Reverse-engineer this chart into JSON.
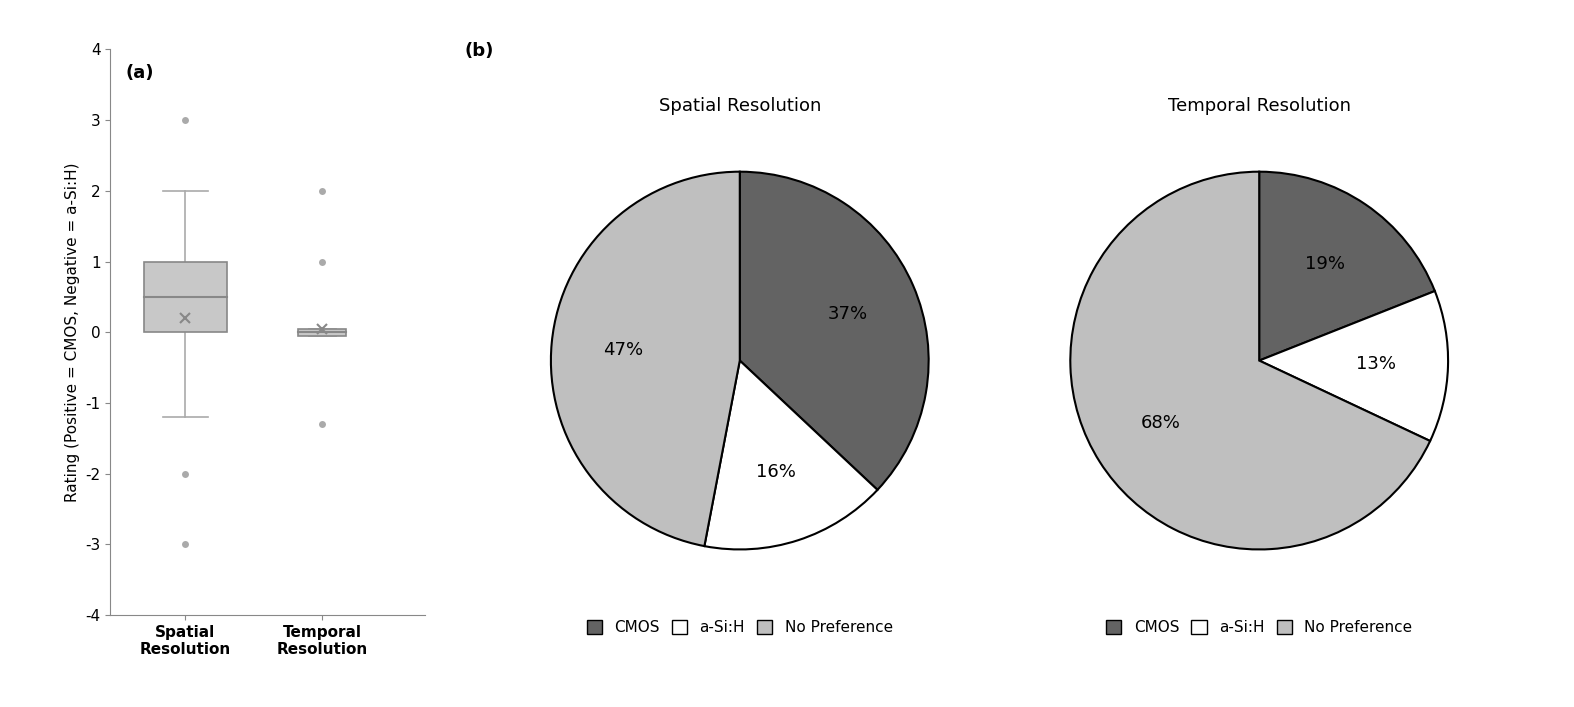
{
  "box_spatial": {
    "q1": 0.0,
    "median": 0.5,
    "q3": 1.0,
    "whisker_low": -1.2,
    "whisker_high": 2.0,
    "mean": 0.2,
    "outliers": [
      3.0,
      -2.0,
      -3.0
    ]
  },
  "box_temporal": {
    "q1": -0.05,
    "median": 0.0,
    "q3": 0.05,
    "whisker_low": -0.05,
    "whisker_high": 0.05,
    "mean": 0.05,
    "outliers": [
      2.0,
      1.0,
      -1.3
    ]
  },
  "box_color": "#c8c8c8",
  "box_edge_color": "#888888",
  "whisker_color": "#aaaaaa",
  "outlier_color": "#aaaaaa",
  "mean_color": "#888888",
  "ylim": [
    -4,
    4
  ],
  "yticks": [
    -4,
    -3,
    -2,
    -1,
    0,
    1,
    2,
    3,
    4
  ],
  "ylabel": "Rating (Positive = CMOS, Negative = a-Si:H)",
  "xlabel_spatial": "Spatial\nResolution",
  "xlabel_temporal": "Temporal\nResolution",
  "label_a": "(a)",
  "label_b": "(b)",
  "pie_spatial": {
    "title": "Spatial Resolution",
    "values": [
      37,
      16,
      47
    ],
    "labels": [
      "37%",
      "16%",
      "47%"
    ],
    "colors": [
      "#636363",
      "#ffffff",
      "#bfbfbf"
    ],
    "legend_labels": [
      "CMOS",
      "a-Si:H",
      "No Preference"
    ],
    "startangle": 90
  },
  "pie_temporal": {
    "title": "Temporal Resolution",
    "values": [
      19,
      13,
      68
    ],
    "labels": [
      "19%",
      "13%",
      "68%"
    ],
    "colors": [
      "#636363",
      "#ffffff",
      "#bfbfbf"
    ],
    "legend_labels": [
      "CMOS",
      "a-Si:H",
      "No Preference"
    ],
    "startangle": 90
  },
  "legend_cmos_color": "#636363",
  "legend_asih_color": "#ffffff",
  "legend_nopref_color": "#bfbfbf",
  "background_color": "#ffffff",
  "font_size_title": 13,
  "font_size_label": 11,
  "font_size_tick": 11,
  "font_size_legend": 11,
  "font_size_pct": 13
}
